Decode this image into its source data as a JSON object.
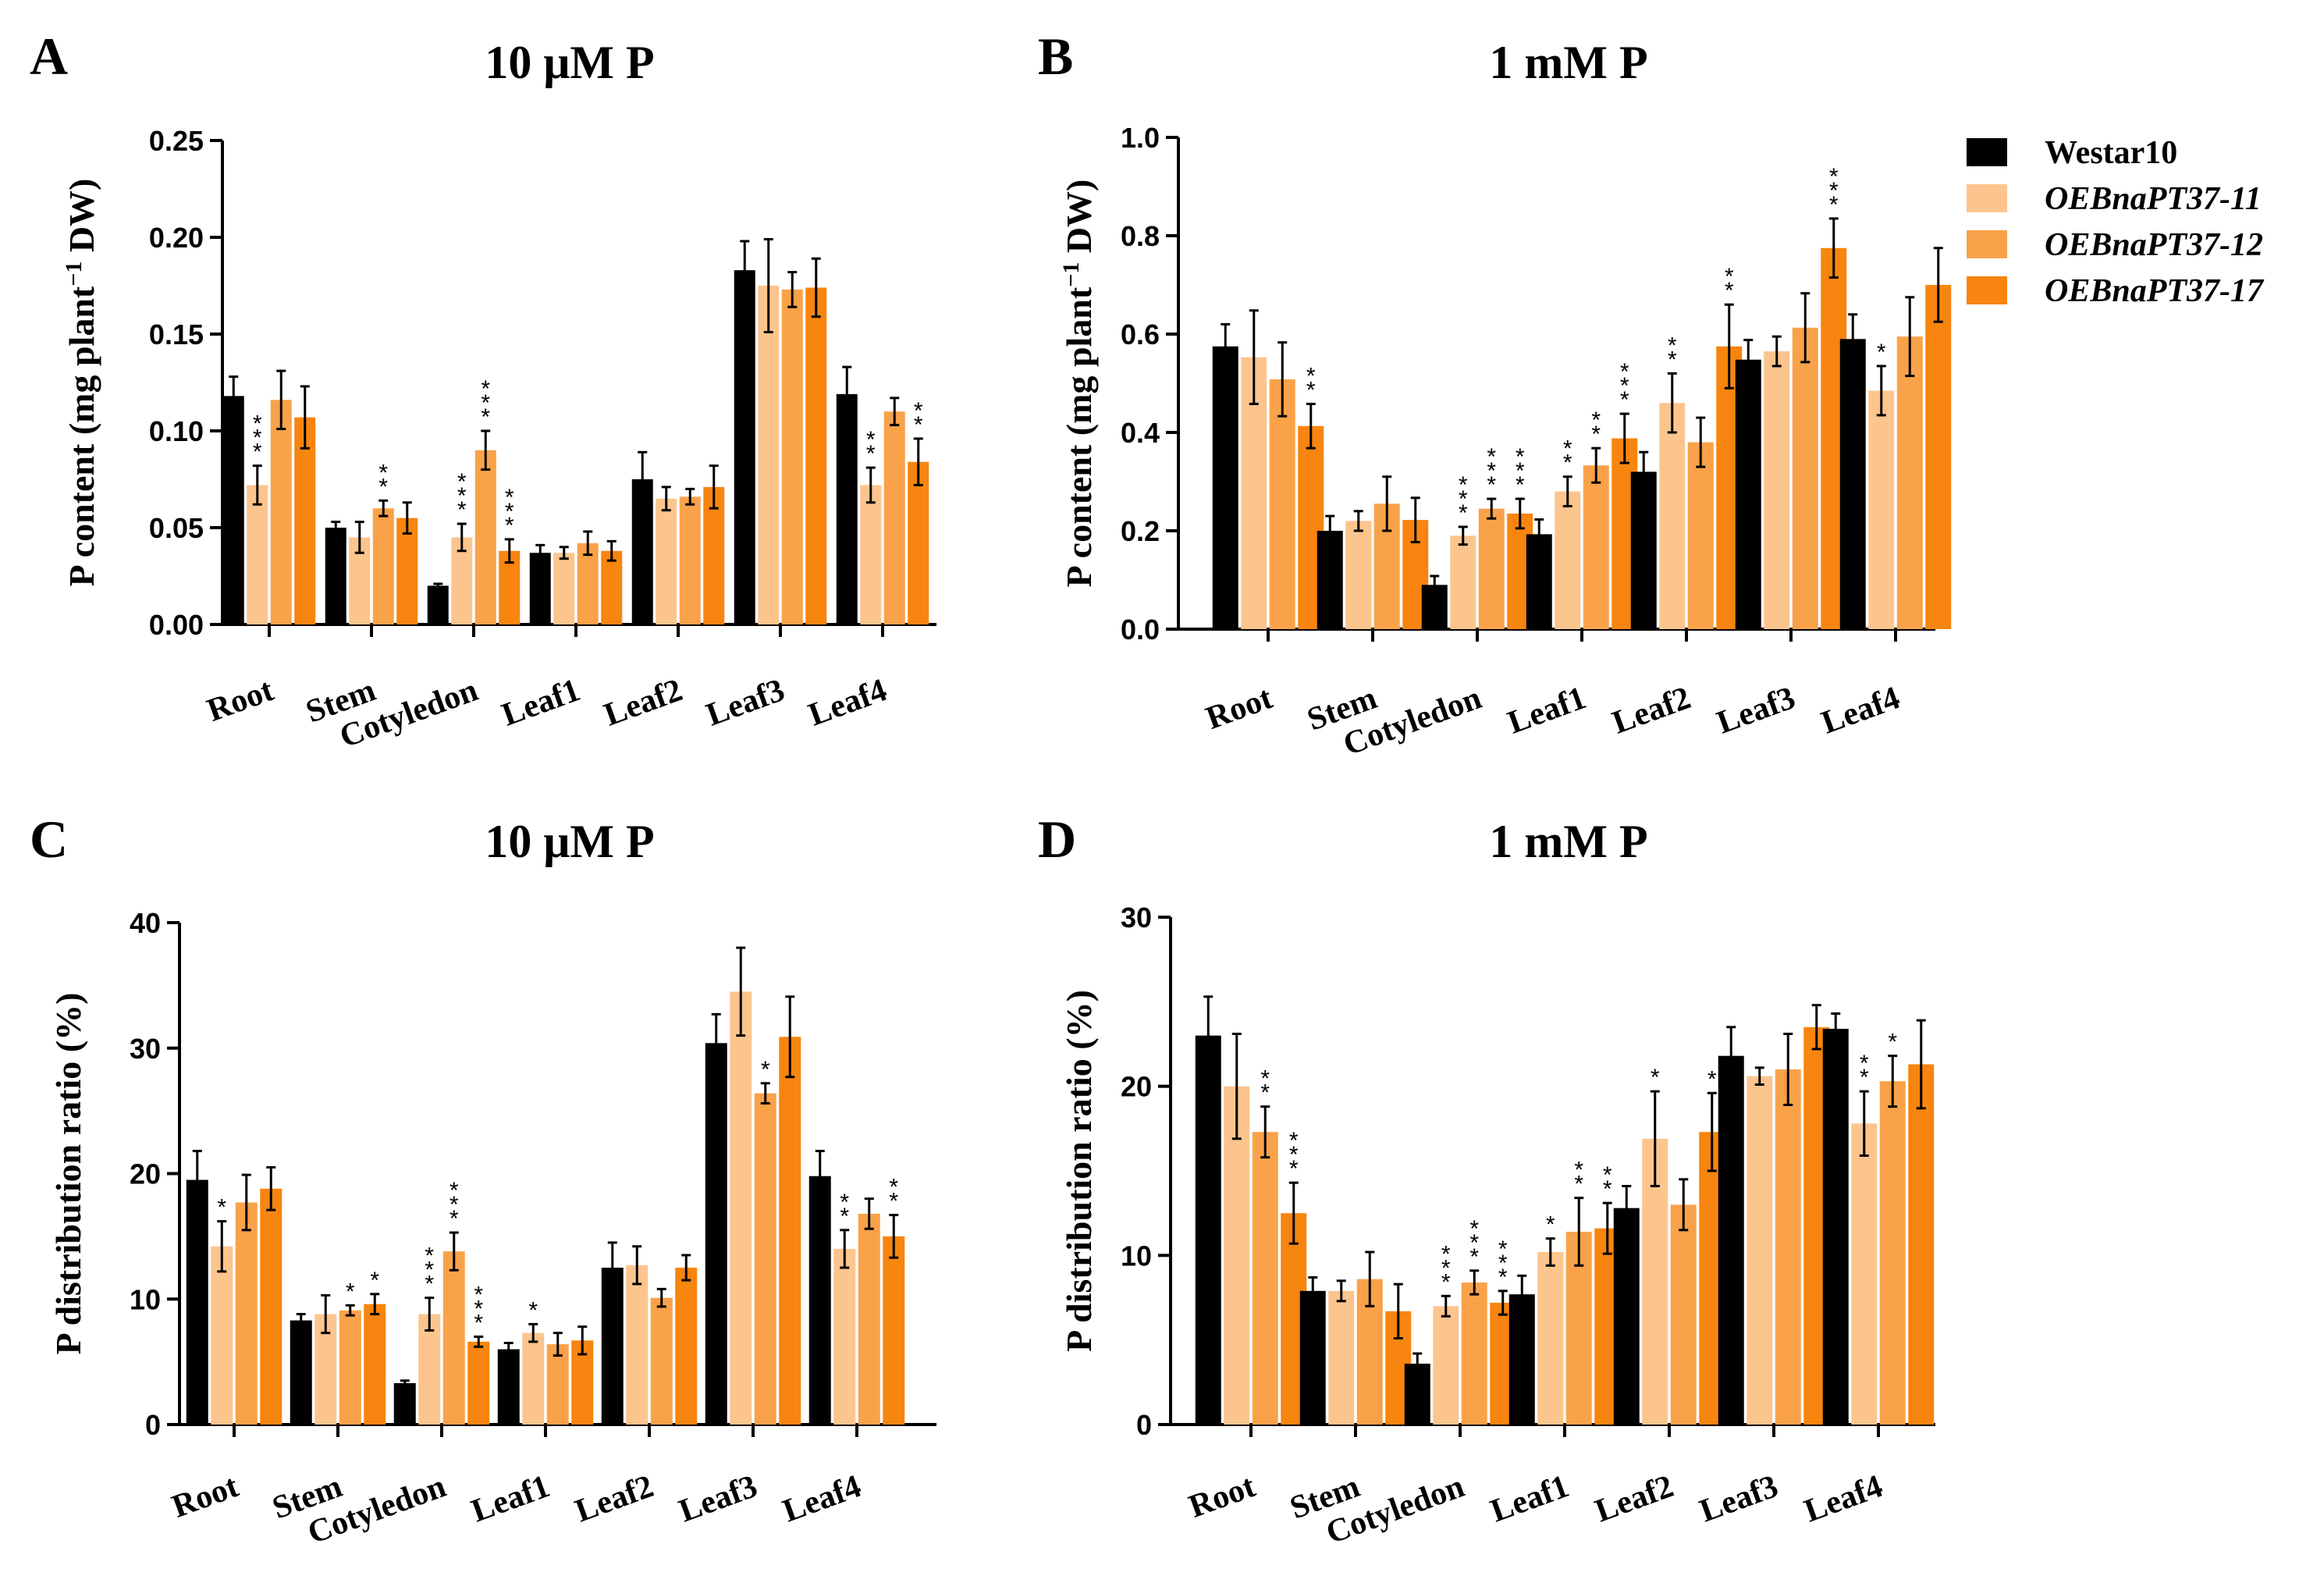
{
  "legend": {
    "entries": [
      {
        "name": "Westar10",
        "color": "#000000",
        "italic": false
      },
      {
        "name": "OEBnaPT37-11",
        "color": "#fcc58e",
        "italic": true
      },
      {
        "name": "OEBnaPT37-12",
        "color": "#f9a24a",
        "italic": true
      },
      {
        "name": "OEBnaPT37-17",
        "color": "#f7850f",
        "italic": true
      }
    ]
  },
  "chart_data": [
    {
      "panel": "A",
      "type": "bar",
      "title": "10 μM P",
      "ylabel_parts": [
        "P content (mg plant",
        "−1",
        " DW)"
      ],
      "categories": [
        "Root",
        "Stem",
        "Cotyledon",
        "Leaf1",
        "Leaf2",
        "Leaf3",
        "Leaf4"
      ],
      "ylim": [
        0,
        0.25
      ],
      "yticks": [
        0,
        0.05,
        0.1,
        0.15,
        0.2,
        0.25
      ],
      "ytick_labels": [
        "0.00",
        "0.05",
        "0.10",
        "0.15",
        "0.20",
        "0.25"
      ],
      "series": [
        {
          "name": "Westar10",
          "values": [
            0.118,
            0.05,
            0.02,
            0.037,
            0.075,
            0.183,
            0.119
          ],
          "errors": [
            0.01,
            0.003,
            0.001,
            0.004,
            0.014,
            0.015,
            0.014
          ],
          "stars": [
            0,
            0,
            0,
            0,
            0,
            0,
            0
          ]
        },
        {
          "name": "OEBnaPT37-11",
          "values": [
            0.072,
            0.045,
            0.045,
            0.037,
            0.065,
            0.175,
            0.072
          ],
          "errors": [
            0.01,
            0.008,
            0.007,
            0.003,
            0.006,
            0.024,
            0.009
          ],
          "stars": [
            3,
            0,
            3,
            0,
            0,
            0,
            2
          ]
        },
        {
          "name": "OEBnaPT37-12",
          "values": [
            0.116,
            0.06,
            0.09,
            0.042,
            0.066,
            0.173,
            0.11
          ],
          "errors": [
            0.015,
            0.004,
            0.01,
            0.006,
            0.004,
            0.009,
            0.007
          ],
          "stars": [
            0,
            2,
            3,
            0,
            0,
            0,
            0
          ]
        },
        {
          "name": "OEBnaPT37-17",
          "values": [
            0.107,
            0.055,
            0.038,
            0.038,
            0.071,
            0.174,
            0.084
          ],
          "errors": [
            0.016,
            0.008,
            0.006,
            0.005,
            0.011,
            0.015,
            0.012
          ],
          "stars": [
            0,
            0,
            3,
            0,
            0,
            0,
            2
          ]
        }
      ]
    },
    {
      "panel": "B",
      "type": "bar",
      "title": "1 mM P",
      "ylabel_parts": [
        "P content (mg plant",
        "−1",
        " DW)"
      ],
      "categories": [
        "Root",
        "Stem",
        "Cotyledon",
        "Leaf1",
        "Leaf2",
        "Leaf3",
        "Leaf4"
      ],
      "ylim": [
        0,
        1.0
      ],
      "yticks": [
        0,
        0.2,
        0.4,
        0.6,
        0.8,
        1.0
      ],
      "ytick_labels": [
        "0.0",
        "0.2",
        "0.4",
        "0.6",
        "0.8",
        "1.0"
      ],
      "series": [
        {
          "name": "Westar10",
          "values": [
            0.575,
            0.2,
            0.09,
            0.193,
            0.32,
            0.548,
            0.59
          ],
          "errors": [
            0.045,
            0.03,
            0.018,
            0.03,
            0.04,
            0.04,
            0.05
          ],
          "stars": [
            0,
            0,
            0,
            0,
            0,
            0,
            0
          ]
        },
        {
          "name": "OEBnaPT37-11",
          "values": [
            0.553,
            0.22,
            0.19,
            0.28,
            0.46,
            0.565,
            0.485
          ],
          "errors": [
            0.095,
            0.02,
            0.018,
            0.03,
            0.06,
            0.03,
            0.05
          ],
          "stars": [
            0,
            0,
            3,
            2,
            2,
            0,
            1
          ]
        },
        {
          "name": "OEBnaPT37-12",
          "values": [
            0.508,
            0.255,
            0.245,
            0.333,
            0.38,
            0.613,
            0.595
          ],
          "errors": [
            0.075,
            0.055,
            0.02,
            0.035,
            0.05,
            0.07,
            0.08
          ],
          "stars": [
            0,
            0,
            3,
            2,
            0,
            0,
            0
          ]
        },
        {
          "name": "OEBnaPT37-17",
          "values": [
            0.413,
            0.222,
            0.235,
            0.388,
            0.575,
            0.775,
            0.7
          ],
          "errors": [
            0.045,
            0.045,
            0.03,
            0.05,
            0.085,
            0.06,
            0.075
          ],
          "stars": [
            2,
            0,
            3,
            3,
            2,
            3,
            0
          ]
        }
      ]
    },
    {
      "panel": "C",
      "type": "bar",
      "title": "10 μM P",
      "ylabel_parts": [
        "P distribution ratio (%)"
      ],
      "categories": [
        "Root",
        "Stem",
        "Cotyledon",
        "Leaf1",
        "Leaf2",
        "Leaf3",
        "Leaf4"
      ],
      "ylim": [
        0,
        40
      ],
      "yticks": [
        0,
        10,
        20,
        30,
        40
      ],
      "ytick_labels": [
        "0",
        "10",
        "20",
        "30",
        "40"
      ],
      "series": [
        {
          "name": "Westar10",
          "values": [
            19.5,
            8.3,
            3.3,
            6.0,
            12.5,
            30.4,
            19.8
          ],
          "errors": [
            2.3,
            0.5,
            0.2,
            0.5,
            2.0,
            2.3,
            2.0
          ],
          "stars": [
            0,
            0,
            0,
            0,
            0,
            0,
            0
          ]
        },
        {
          "name": "OEBnaPT37-11",
          "values": [
            14.2,
            8.8,
            8.8,
            7.3,
            12.7,
            34.5,
            14.0
          ],
          "errors": [
            2.0,
            1.5,
            1.3,
            0.7,
            1.5,
            3.5,
            1.5
          ],
          "stars": [
            1,
            0,
            3,
            1,
            0,
            0,
            2
          ]
        },
        {
          "name": "OEBnaPT37-12",
          "values": [
            17.7,
            9.1,
            13.8,
            6.4,
            10.1,
            26.4,
            16.8
          ],
          "errors": [
            2.2,
            0.4,
            1.5,
            0.9,
            0.7,
            0.8,
            1.2
          ],
          "stars": [
            0,
            1,
            3,
            0,
            0,
            1,
            0
          ]
        },
        {
          "name": "OEBnaPT37-17",
          "values": [
            18.8,
            9.6,
            6.6,
            6.7,
            12.5,
            30.9,
            15.0
          ],
          "errors": [
            1.7,
            0.8,
            0.4,
            1.1,
            1.0,
            3.2,
            1.7
          ],
          "stars": [
            0,
            1,
            3,
            0,
            0,
            0,
            2
          ]
        }
      ]
    },
    {
      "panel": "D",
      "type": "bar",
      "title": "1 mM P",
      "ylabel_parts": [
        "P distribution ratio (%)"
      ],
      "categories": [
        "Root",
        "Stem",
        "Cotyledon",
        "Leaf1",
        "Leaf2",
        "Leaf3",
        "Leaf4"
      ],
      "ylim": [
        0,
        30
      ],
      "yticks": [
        0,
        10,
        20,
        30
      ],
      "ytick_labels": [
        "0",
        "10",
        "20",
        "30"
      ],
      "series": [
        {
          "name": "Westar10",
          "values": [
            23.0,
            7.9,
            3.6,
            7.7,
            12.8,
            21.8,
            23.4
          ],
          "errors": [
            2.3,
            0.8,
            0.6,
            1.1,
            1.3,
            1.7,
            0.9
          ],
          "stars": [
            0,
            0,
            0,
            0,
            0,
            0,
            0
          ]
        },
        {
          "name": "OEBnaPT37-11",
          "values": [
            20.0,
            7.9,
            7.0,
            10.2,
            16.9,
            20.6,
            17.8
          ],
          "errors": [
            3.1,
            0.6,
            0.6,
            0.8,
            2.8,
            0.5,
            1.9
          ],
          "stars": [
            0,
            0,
            3,
            1,
            1,
            0,
            2
          ]
        },
        {
          "name": "OEBnaPT37-12",
          "values": [
            17.3,
            8.6,
            8.4,
            11.4,
            13.0,
            21.0,
            20.3
          ],
          "errors": [
            1.5,
            1.6,
            0.7,
            2.0,
            1.5,
            2.1,
            1.5
          ],
          "stars": [
            2,
            0,
            3,
            2,
            0,
            0,
            1
          ]
        },
        {
          "name": "OEBnaPT37-17",
          "values": [
            12.5,
            6.7,
            7.2,
            11.6,
            17.3,
            23.5,
            21.3
          ],
          "errors": [
            1.8,
            1.6,
            0.7,
            1.5,
            2.3,
            1.3,
            2.6
          ],
          "stars": [
            3,
            0,
            3,
            2,
            1,
            0,
            0
          ]
        }
      ]
    }
  ]
}
